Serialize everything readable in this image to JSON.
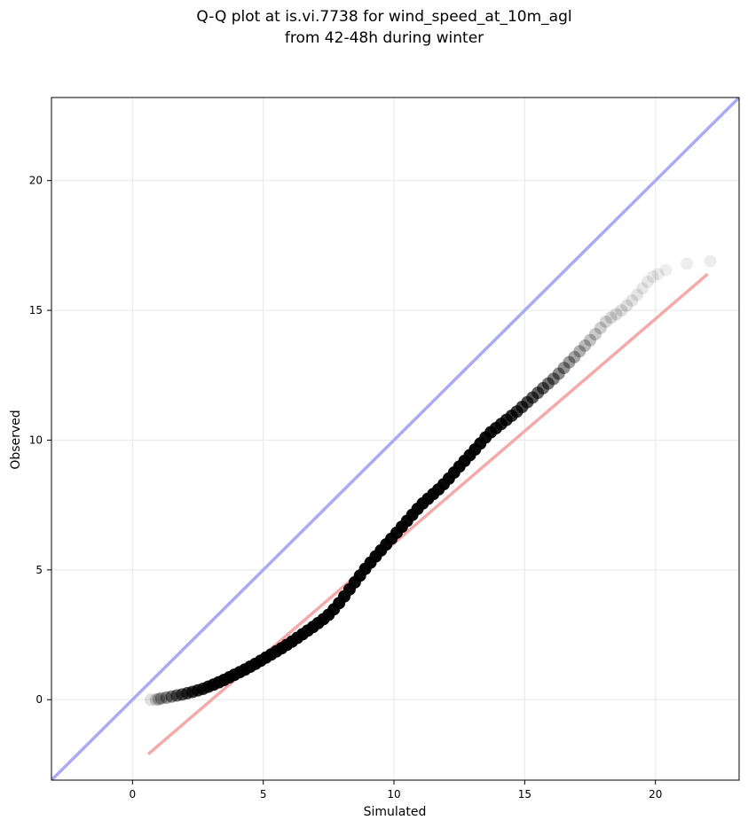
{
  "chart_data": {
    "type": "scatter",
    "title": [
      "Q-Q plot at is.vi.7738 for wind_speed_at_10m_agl",
      "from 42-48h during winter"
    ],
    "xlabel": "Simulated",
    "ylabel": "Observed",
    "xlim": [
      -3.1,
      23.2
    ],
    "ylim": [
      -3.1,
      23.2
    ],
    "xticks": [
      0,
      5,
      10,
      15,
      20
    ],
    "yticks": [
      0,
      5,
      10,
      15,
      20
    ],
    "grid": true,
    "legend": "none",
    "colors": {
      "points": "#000000",
      "identity_line": "#aaaaf5",
      "fit_line": "#f5aaaa",
      "grid": "#ebebeb"
    },
    "reference_lines": [
      {
        "kind": "identity",
        "x": [
          -3.1,
          23.2
        ],
        "y": [
          -3.1,
          23.2
        ]
      },
      {
        "kind": "fit",
        "x": [
          0.6,
          22.0
        ],
        "y": [
          -2.1,
          16.4
        ]
      }
    ],
    "quantiles": {
      "x": [
        0.7,
        0.9,
        1.0,
        1.1,
        1.3,
        1.5,
        1.7,
        1.9,
        2.1,
        2.3,
        2.5,
        2.7,
        2.9,
        3.1,
        3.3,
        3.5,
        3.7,
        3.9,
        4.1,
        4.3,
        4.5,
        4.7,
        4.9,
        5.1,
        5.3,
        5.5,
        5.7,
        5.9,
        6.1,
        6.3,
        6.5,
        6.7,
        6.9,
        7.1,
        7.3,
        7.5,
        7.7,
        7.9,
        8.1,
        8.3,
        8.5,
        8.7,
        8.9,
        9.1,
        9.3,
        9.5,
        9.7,
        9.9,
        10.1,
        10.3,
        10.5,
        10.7,
        10.9,
        11.1,
        11.3,
        11.5,
        11.7,
        11.9,
        12.1,
        12.3,
        12.5,
        12.7,
        12.9,
        13.1,
        13.3,
        13.5,
        13.7,
        13.9,
        14.1,
        14.3,
        14.5,
        14.7,
        14.9,
        15.1,
        15.3,
        15.5,
        15.7,
        15.9,
        16.1,
        16.3,
        16.5,
        16.7,
        16.9,
        17.1,
        17.3,
        17.5,
        17.7,
        17.9,
        18.1,
        18.3,
        18.5,
        18.7,
        18.9,
        19.1,
        19.3,
        19.5,
        19.7,
        19.9,
        20.1,
        20.4,
        21.2,
        22.1
      ],
      "y": [
        0.0,
        0.0,
        0.02,
        0.05,
        0.08,
        0.12,
        0.16,
        0.2,
        0.25,
        0.3,
        0.36,
        0.42,
        0.5,
        0.58,
        0.67,
        0.76,
        0.86,
        0.96,
        1.06,
        1.16,
        1.27,
        1.38,
        1.5,
        1.62,
        1.74,
        1.86,
        1.98,
        2.11,
        2.24,
        2.38,
        2.52,
        2.66,
        2.8,
        2.95,
        3.1,
        3.27,
        3.48,
        3.72,
        3.98,
        4.25,
        4.52,
        4.78,
        5.04,
        5.28,
        5.52,
        5.75,
        5.98,
        6.2,
        6.43,
        6.66,
        6.89,
        7.12,
        7.35,
        7.56,
        7.74,
        7.92,
        8.1,
        8.3,
        8.52,
        8.75,
        8.98,
        9.2,
        9.42,
        9.64,
        9.87,
        10.1,
        10.3,
        10.46,
        10.62,
        10.78,
        10.94,
        11.1,
        11.28,
        11.46,
        11.64,
        11.82,
        12.0,
        12.18,
        12.36,
        12.56,
        12.78,
        13.0,
        13.2,
        13.42,
        13.64,
        13.85,
        14.08,
        14.32,
        14.56,
        14.72,
        14.85,
        15.0,
        15.18,
        15.38,
        15.6,
        15.85,
        16.1,
        16.3,
        16.4,
        16.55,
        16.8,
        16.9
      ],
      "alpha": [
        0.12,
        0.18,
        0.25,
        0.32,
        0.4,
        0.48,
        0.56,
        0.64,
        0.72,
        0.78,
        0.82,
        0.86,
        0.9,
        0.92,
        0.94,
        0.95,
        0.96,
        0.97,
        0.97,
        0.97,
        0.97,
        0.97,
        0.97,
        0.97,
        0.97,
        0.97,
        0.97,
        0.97,
        0.97,
        0.97,
        0.97,
        0.97,
        0.97,
        0.97,
        0.97,
        0.97,
        0.97,
        0.97,
        0.97,
        0.97,
        0.97,
        0.97,
        0.97,
        0.97,
        0.97,
        0.97,
        0.97,
        0.97,
        0.97,
        0.97,
        0.97,
        0.97,
        0.97,
        0.97,
        0.97,
        0.97,
        0.97,
        0.97,
        0.97,
        0.97,
        0.97,
        0.97,
        0.97,
        0.96,
        0.95,
        0.94,
        0.92,
        0.9,
        0.88,
        0.85,
        0.82,
        0.78,
        0.74,
        0.7,
        0.66,
        0.62,
        0.58,
        0.54,
        0.5,
        0.46,
        0.42,
        0.38,
        0.34,
        0.3,
        0.27,
        0.24,
        0.21,
        0.19,
        0.17,
        0.15,
        0.14,
        0.13,
        0.12,
        0.11,
        0.1,
        0.09,
        0.09,
        0.08,
        0.08,
        0.07,
        0.07,
        0.07
      ]
    }
  }
}
